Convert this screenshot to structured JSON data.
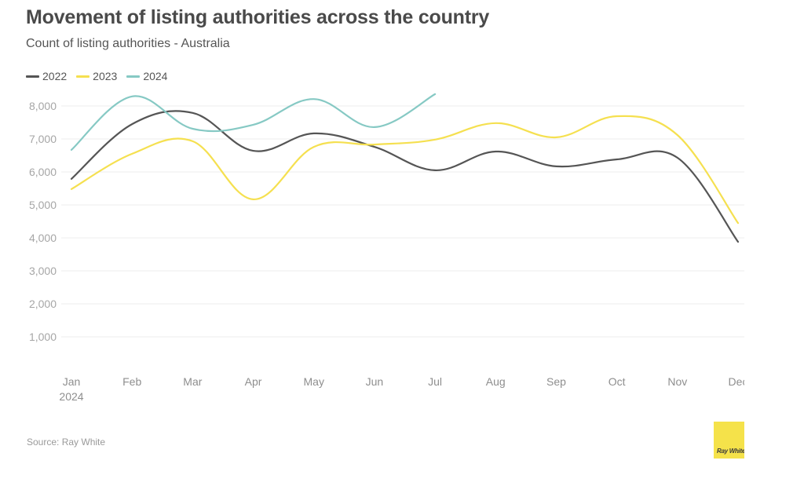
{
  "header": {
    "title": "Movement of listing authorities across the country",
    "subtitle": "Count of listing authorities - Australia"
  },
  "footer": {
    "source": "Source: Ray White",
    "logo_text": "Ray White"
  },
  "colors": {
    "2022": "#555555",
    "2023": "#f5e050",
    "2024": "#86c9c4",
    "grid": "#ececec",
    "axis_text": "#a6a6a6"
  },
  "chart_data": {
    "type": "line",
    "title": "Movement of listing authorities across the country",
    "subtitle": "Count of listing authorities - Australia",
    "xlabel": "",
    "ylabel": "",
    "categories": [
      "Jan",
      "Feb",
      "Mar",
      "Apr",
      "May",
      "Jun",
      "Jul",
      "Aug",
      "Sep",
      "Oct",
      "Nov",
      "Dec"
    ],
    "x_tick_labels": [
      "Jan\n2024",
      "Feb",
      "Mar",
      "Apr",
      "May",
      "Jun",
      "Jul",
      "Aug",
      "Sep",
      "Oct",
      "Nov",
      "Dec"
    ],
    "y_ticks": [
      1000,
      2000,
      3000,
      4000,
      5000,
      6000,
      7000,
      8000
    ],
    "y_tick_labels": [
      "1,000",
      "2,000",
      "3,000",
      "4,000",
      "5,000",
      "6,000",
      "7,000",
      "8,000"
    ],
    "ylim": [
      0,
      8500
    ],
    "grid": true,
    "legend_position": "top-left",
    "series": [
      {
        "name": "2022",
        "values": [
          5790,
          7450,
          7790,
          6640,
          7170,
          6760,
          6050,
          6620,
          6170,
          6380,
          6430,
          3880
        ]
      },
      {
        "name": "2023",
        "values": [
          5480,
          6550,
          6930,
          5170,
          6760,
          6830,
          6980,
          7480,
          7050,
          7690,
          7120,
          4450
        ]
      },
      {
        "name": "2024",
        "values": [
          6670,
          8290,
          7310,
          7430,
          8210,
          7360,
          8360,
          null,
          null,
          null,
          null,
          null
        ]
      }
    ],
    "source": "Source: Ray White"
  }
}
